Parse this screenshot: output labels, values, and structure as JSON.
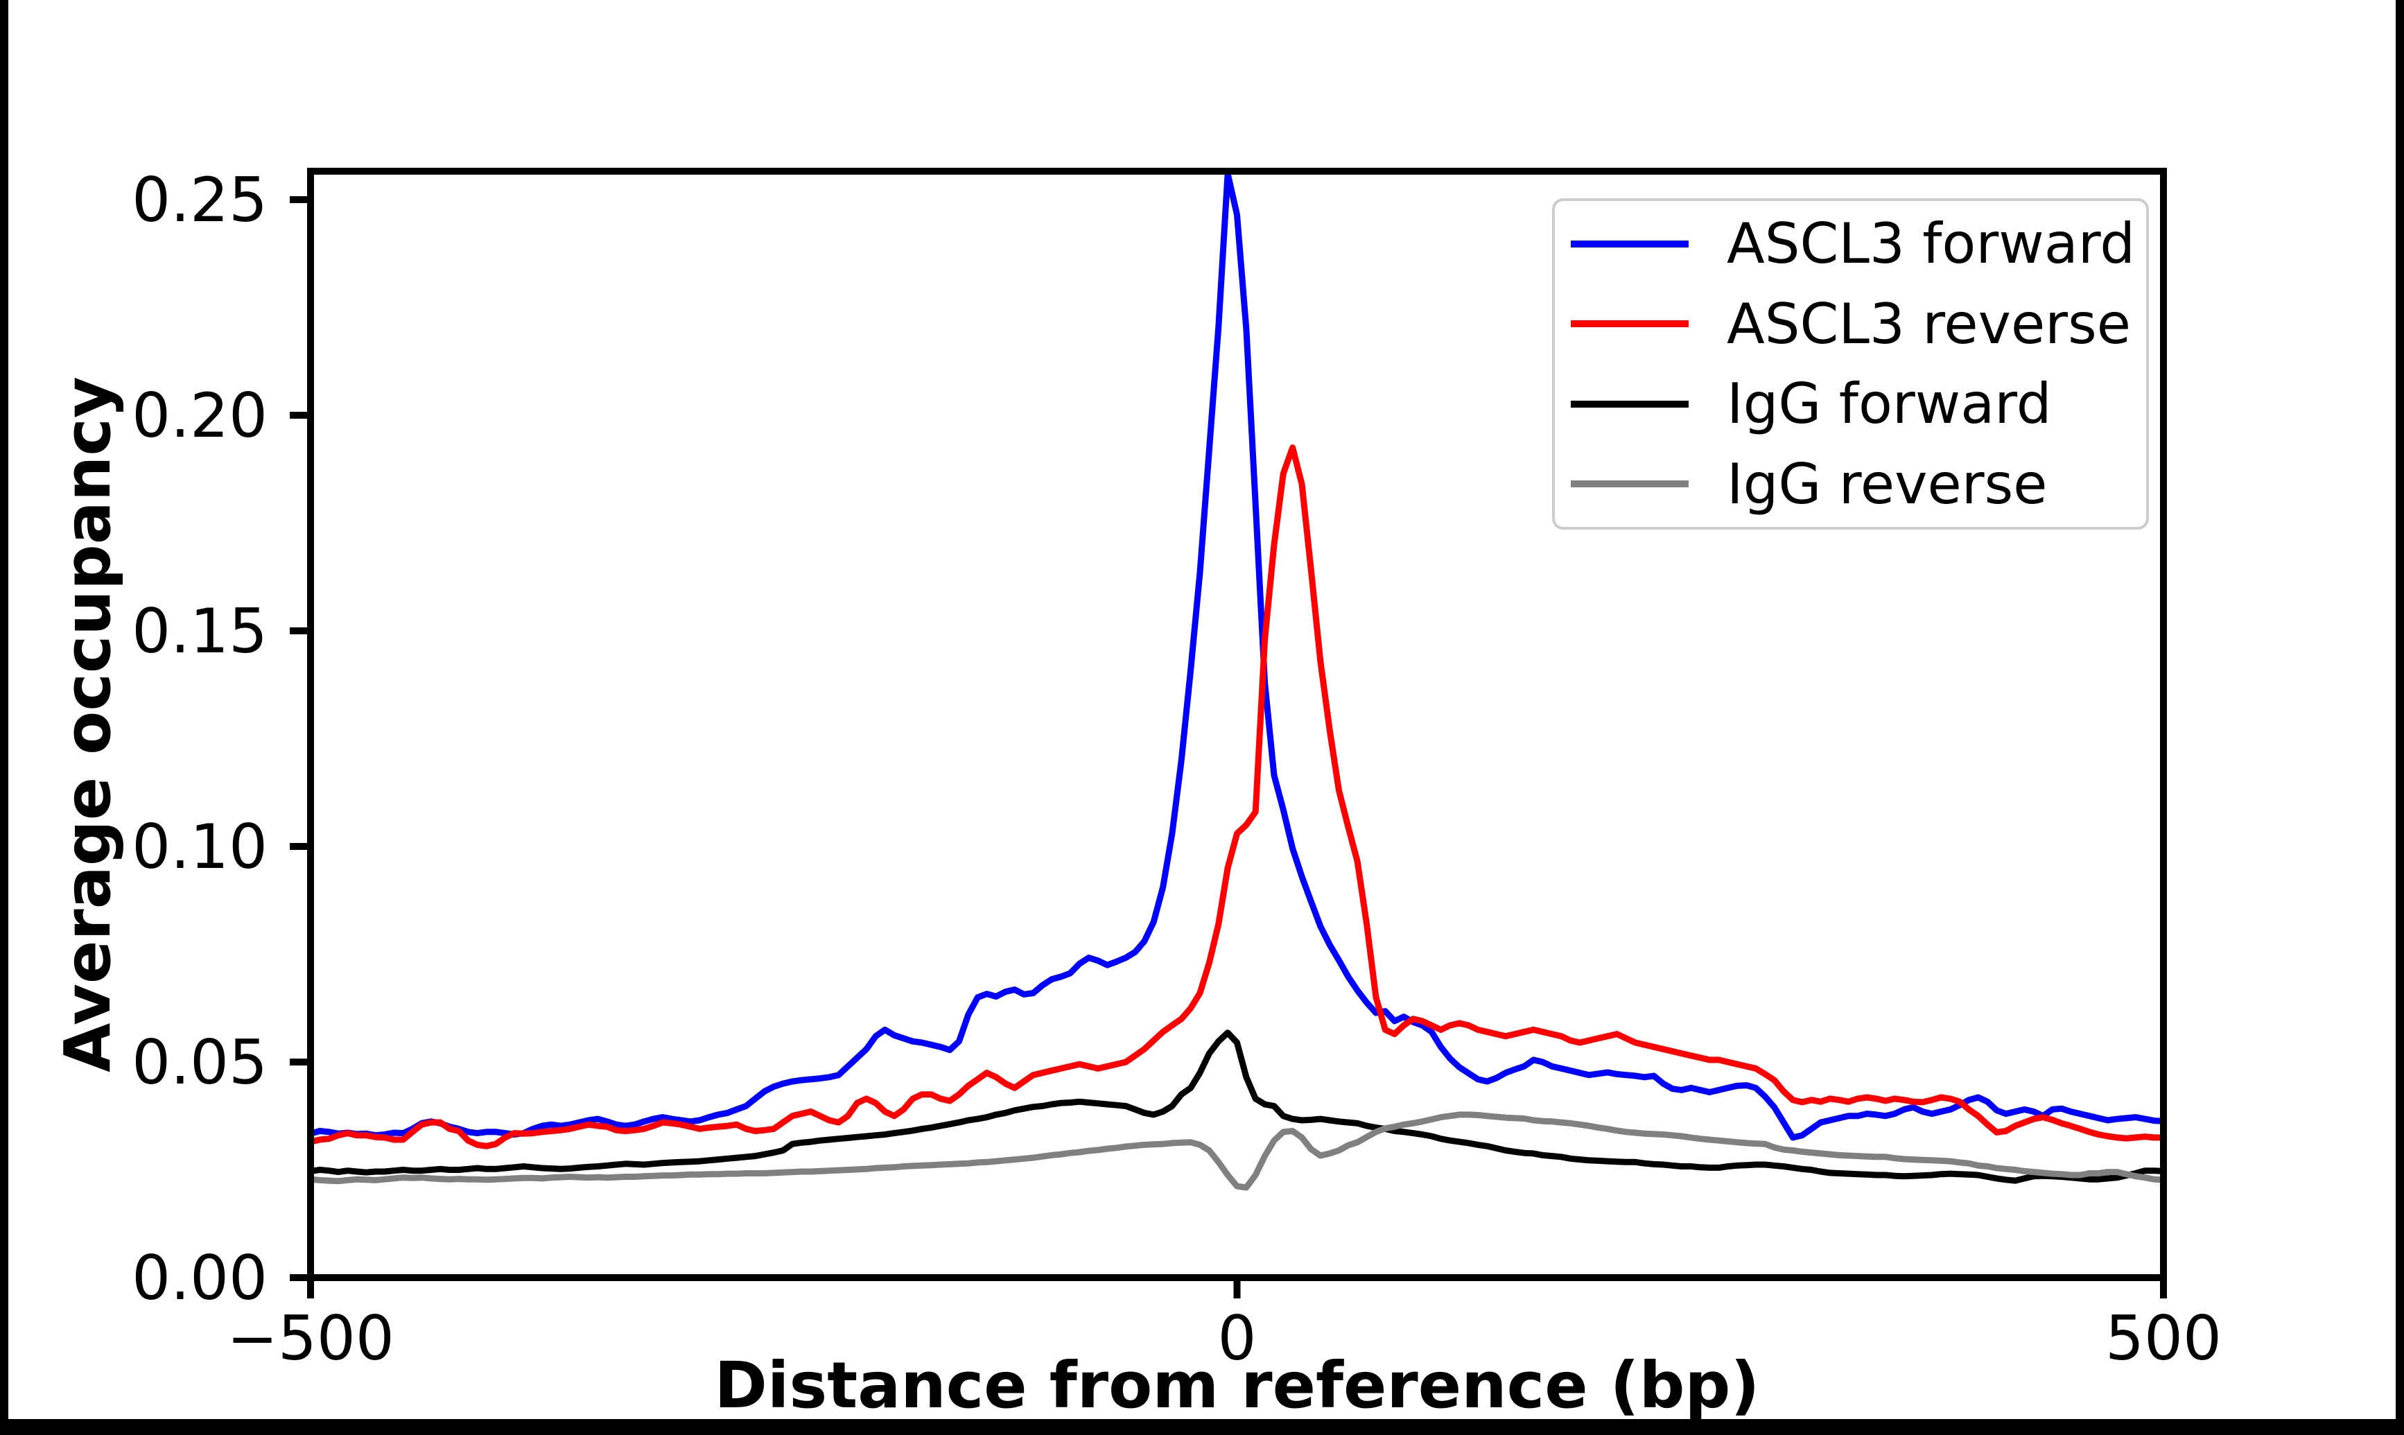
{
  "chart_data": {
    "type": "line",
    "title": "",
    "xlabel": "Distance from reference (bp)",
    "ylabel": "Average occupancy",
    "xlim": [
      -500,
      500
    ],
    "ylim": [
      0,
      0.2566
    ],
    "xticks": [
      -500,
      0,
      500
    ],
    "xtick_labels": [
      "−500",
      "0",
      "500"
    ],
    "yticks": [
      0.0,
      0.05,
      0.1,
      0.15,
      0.2,
      0.25
    ],
    "ytick_labels": [
      "0.00",
      "0.05",
      "0.10",
      "0.15",
      "0.20",
      "0.25"
    ],
    "grid": false,
    "legend_position": "upper right",
    "x_start": -500,
    "x_step": 5,
    "series": [
      {
        "name": "ASCL3 forward",
        "color": "#0000ff",
        "values": [
          0.0334,
          0.034,
          0.0338,
          0.0334,
          0.0336,
          0.0333,
          0.0334,
          0.033,
          0.0332,
          0.0336,
          0.0335,
          0.0345,
          0.0358,
          0.0362,
          0.0358,
          0.035,
          0.0345,
          0.0338,
          0.0335,
          0.0338,
          0.0338,
          0.0335,
          0.0332,
          0.0335,
          0.0345,
          0.0352,
          0.0355,
          0.0352,
          0.0355,
          0.036,
          0.0365,
          0.0368,
          0.0362,
          0.0355,
          0.0352,
          0.0355,
          0.0362,
          0.0368,
          0.0372,
          0.0368,
          0.0365,
          0.0362,
          0.0365,
          0.0372,
          0.0378,
          0.0382,
          0.039,
          0.0398,
          0.0415,
          0.0432,
          0.0443,
          0.045,
          0.0455,
          0.0458,
          0.046,
          0.0462,
          0.0465,
          0.047,
          0.049,
          0.051,
          0.053,
          0.056,
          0.0575,
          0.0562,
          0.0555,
          0.0548,
          0.0545,
          0.054,
          0.0535,
          0.0528,
          0.0548,
          0.061,
          0.065,
          0.0658,
          0.0652,
          0.0663,
          0.0668,
          0.0657,
          0.066,
          0.0678,
          0.0692,
          0.0698,
          0.0706,
          0.0728,
          0.0742,
          0.0735,
          0.0725,
          0.0733,
          0.0742,
          0.0755,
          0.078,
          0.0825,
          0.0905,
          0.103,
          0.12,
          0.141,
          0.1635,
          0.192,
          0.2205,
          0.256,
          0.2465,
          0.22,
          0.1795,
          0.138,
          0.1165,
          0.1085,
          0.0995,
          0.093,
          0.0872,
          0.0815,
          0.0772,
          0.0736,
          0.0698,
          0.0666,
          0.0638,
          0.0614,
          0.0618,
          0.0595,
          0.0605,
          0.0593,
          0.0585,
          0.057,
          0.0535,
          0.0508,
          0.0488,
          0.0474,
          0.046,
          0.0455,
          0.0463,
          0.0475,
          0.0483,
          0.049,
          0.0505,
          0.05,
          0.049,
          0.0485,
          0.048,
          0.0475,
          0.047,
          0.0473,
          0.0476,
          0.0472,
          0.047,
          0.0468,
          0.0465,
          0.0468,
          0.045,
          0.0438,
          0.0435,
          0.044,
          0.0435,
          0.043,
          0.0435,
          0.044,
          0.0445,
          0.0446,
          0.044,
          0.042,
          0.0395,
          0.036,
          0.0325,
          0.033,
          0.0345,
          0.036,
          0.0365,
          0.037,
          0.0375,
          0.0375,
          0.038,
          0.0378,
          0.0375,
          0.038,
          0.039,
          0.0395,
          0.0385,
          0.038,
          0.0385,
          0.039,
          0.04,
          0.0412,
          0.0418,
          0.0408,
          0.0388,
          0.038,
          0.0385,
          0.039,
          0.0385,
          0.0375,
          0.039,
          0.0392,
          0.0385,
          0.038,
          0.0375,
          0.037,
          0.0365,
          0.0368,
          0.037,
          0.0372,
          0.0368,
          0.0364,
          0.0363
        ]
      },
      {
        "name": "ASCL3 reverse",
        "color": "#ff0000",
        "values": [
          0.0315,
          0.032,
          0.0322,
          0.033,
          0.0335,
          0.033,
          0.033,
          0.0326,
          0.0325,
          0.032,
          0.032,
          0.0338,
          0.0355,
          0.036,
          0.036,
          0.0345,
          0.034,
          0.0318,
          0.0308,
          0.0305,
          0.031,
          0.0325,
          0.0335,
          0.0334,
          0.0335,
          0.0338,
          0.034,
          0.0342,
          0.0345,
          0.035,
          0.0355,
          0.0352,
          0.035,
          0.0342,
          0.034,
          0.0342,
          0.0345,
          0.0352,
          0.036,
          0.0358,
          0.0355,
          0.035,
          0.0345,
          0.0348,
          0.035,
          0.0352,
          0.0355,
          0.0345,
          0.034,
          0.0342,
          0.0345,
          0.036,
          0.0375,
          0.038,
          0.0385,
          0.0375,
          0.0365,
          0.036,
          0.0375,
          0.0405,
          0.0415,
          0.0405,
          0.0385,
          0.0375,
          0.039,
          0.0415,
          0.0425,
          0.0425,
          0.0415,
          0.041,
          0.0425,
          0.0445,
          0.046,
          0.0475,
          0.0465,
          0.045,
          0.044,
          0.0455,
          0.047,
          0.0475,
          0.048,
          0.0485,
          0.049,
          0.0495,
          0.049,
          0.0485,
          0.049,
          0.0495,
          0.05,
          0.0515,
          0.053,
          0.055,
          0.057,
          0.0585,
          0.06,
          0.0625,
          0.066,
          0.073,
          0.082,
          0.095,
          0.103,
          0.105,
          0.108,
          0.148,
          0.17,
          0.1865,
          0.1925,
          0.184,
          0.164,
          0.143,
          0.127,
          0.113,
          0.1045,
          0.0965,
          0.082,
          0.065,
          0.0575,
          0.0565,
          0.0585,
          0.06,
          0.0595,
          0.0585,
          0.0575,
          0.0585,
          0.059,
          0.0585,
          0.0575,
          0.057,
          0.0565,
          0.056,
          0.0565,
          0.057,
          0.0575,
          0.057,
          0.0565,
          0.056,
          0.055,
          0.0545,
          0.055,
          0.0555,
          0.056,
          0.0565,
          0.0555,
          0.0545,
          0.054,
          0.0535,
          0.053,
          0.0525,
          0.052,
          0.0515,
          0.051,
          0.0505,
          0.0505,
          0.05,
          0.0495,
          0.049,
          0.0485,
          0.0472,
          0.0458,
          0.0432,
          0.0412,
          0.0407,
          0.0412,
          0.0408,
          0.0415,
          0.0412,
          0.0408,
          0.0415,
          0.0418,
          0.0415,
          0.041,
          0.0415,
          0.0412,
          0.0408,
          0.0407,
          0.0412,
          0.0418,
          0.0415,
          0.0408,
          0.039,
          0.0375,
          0.0355,
          0.0337,
          0.034,
          0.0352,
          0.036,
          0.0368,
          0.0372,
          0.0366,
          0.0358,
          0.0352,
          0.0345,
          0.0338,
          0.0332,
          0.0328,
          0.0325,
          0.0323,
          0.0325,
          0.0327,
          0.0325,
          0.0325
        ]
      },
      {
        "name": "IgG forward",
        "color": "#000000",
        "values": [
          0.0247,
          0.025,
          0.0248,
          0.0245,
          0.0248,
          0.0246,
          0.0244,
          0.0246,
          0.0246,
          0.0248,
          0.025,
          0.0248,
          0.0248,
          0.025,
          0.0252,
          0.025,
          0.025,
          0.0252,
          0.0254,
          0.0252,
          0.0252,
          0.0254,
          0.0256,
          0.0258,
          0.0256,
          0.0254,
          0.0253,
          0.0252,
          0.0253,
          0.0255,
          0.0257,
          0.0258,
          0.026,
          0.0262,
          0.0264,
          0.0263,
          0.0262,
          0.0264,
          0.0266,
          0.0267,
          0.0268,
          0.0269,
          0.027,
          0.0272,
          0.0274,
          0.0276,
          0.0278,
          0.028,
          0.0282,
          0.0286,
          0.029,
          0.0295,
          0.031,
          0.0313,
          0.0315,
          0.0318,
          0.032,
          0.0322,
          0.0324,
          0.0326,
          0.0328,
          0.033,
          0.0332,
          0.0335,
          0.0338,
          0.0341,
          0.0345,
          0.0348,
          0.0352,
          0.0356,
          0.036,
          0.0365,
          0.0368,
          0.0372,
          0.0378,
          0.0382,
          0.0388,
          0.0392,
          0.0396,
          0.0398,
          0.0402,
          0.0405,
          0.0406,
          0.0408,
          0.0406,
          0.0404,
          0.0402,
          0.04,
          0.0398,
          0.039,
          0.0382,
          0.0378,
          0.0385,
          0.0398,
          0.0425,
          0.044,
          0.0475,
          0.052,
          0.0548,
          0.0568,
          0.0545,
          0.0465,
          0.0415,
          0.0402,
          0.0398,
          0.0375,
          0.0368,
          0.0365,
          0.0366,
          0.0368,
          0.0365,
          0.0362,
          0.036,
          0.0358,
          0.0352,
          0.0348,
          0.0345,
          0.034,
          0.0338,
          0.0335,
          0.0332,
          0.0328,
          0.0322,
          0.0318,
          0.0315,
          0.0312,
          0.0308,
          0.0305,
          0.03,
          0.0295,
          0.0292,
          0.0289,
          0.0288,
          0.0284,
          0.0282,
          0.028,
          0.0276,
          0.0274,
          0.0272,
          0.0271,
          0.027,
          0.0269,
          0.0268,
          0.0268,
          0.0265,
          0.0263,
          0.0262,
          0.026,
          0.0258,
          0.0258,
          0.0256,
          0.0255,
          0.0255,
          0.0258,
          0.026,
          0.0261,
          0.0262,
          0.0262,
          0.026,
          0.0258,
          0.0255,
          0.0252,
          0.025,
          0.0246,
          0.0243,
          0.0242,
          0.0241,
          0.024,
          0.0239,
          0.0238,
          0.0238,
          0.0236,
          0.0235,
          0.0236,
          0.0237,
          0.0238,
          0.024,
          0.0241,
          0.024,
          0.0239,
          0.0238,
          0.0234,
          0.023,
          0.0227,
          0.0225,
          0.023,
          0.0235,
          0.0236,
          0.0235,
          0.0234,
          0.0232,
          0.023,
          0.0228,
          0.0228,
          0.023,
          0.0232,
          0.0237,
          0.0242,
          0.0248,
          0.0248,
          0.0247
        ]
      },
      {
        "name": "IgG reverse",
        "color": "#808080",
        "values": [
          0.0228,
          0.0226,
          0.0225,
          0.0224,
          0.0226,
          0.0228,
          0.0227,
          0.0226,
          0.0228,
          0.023,
          0.0232,
          0.0231,
          0.0232,
          0.023,
          0.0229,
          0.0228,
          0.0229,
          0.0228,
          0.0228,
          0.0227,
          0.0228,
          0.0229,
          0.023,
          0.0231,
          0.0231,
          0.023,
          0.0232,
          0.0233,
          0.0234,
          0.0233,
          0.0232,
          0.0233,
          0.0232,
          0.0233,
          0.0234,
          0.0234,
          0.0235,
          0.0236,
          0.0237,
          0.0237,
          0.0238,
          0.0239,
          0.0239,
          0.024,
          0.024,
          0.0241,
          0.0241,
          0.0242,
          0.0242,
          0.0242,
          0.0243,
          0.0244,
          0.0245,
          0.0246,
          0.0246,
          0.0247,
          0.0248,
          0.0249,
          0.025,
          0.0251,
          0.0252,
          0.0254,
          0.0255,
          0.0256,
          0.0258,
          0.0259,
          0.026,
          0.0261,
          0.0262,
          0.0263,
          0.0264,
          0.0265,
          0.0267,
          0.0268,
          0.027,
          0.0272,
          0.0274,
          0.0276,
          0.0278,
          0.0281,
          0.0284,
          0.0286,
          0.0289,
          0.0291,
          0.0294,
          0.0296,
          0.0299,
          0.0301,
          0.0304,
          0.0306,
          0.0308,
          0.0309,
          0.031,
          0.0312,
          0.0313,
          0.0314,
          0.0308,
          0.0295,
          0.0268,
          0.0238,
          0.0212,
          0.0209,
          0.0238,
          0.0282,
          0.0318,
          0.0338,
          0.034,
          0.0325,
          0.0298,
          0.0283,
          0.0288,
          0.0295,
          0.0307,
          0.0314,
          0.0326,
          0.0338,
          0.0346,
          0.035,
          0.0355,
          0.0358,
          0.0362,
          0.0367,
          0.0372,
          0.0375,
          0.0378,
          0.0378,
          0.0377,
          0.0375,
          0.0373,
          0.0371,
          0.037,
          0.0369,
          0.0365,
          0.0363,
          0.0362,
          0.036,
          0.0358,
          0.0355,
          0.0352,
          0.0348,
          0.0345,
          0.0341,
          0.0338,
          0.0336,
          0.0334,
          0.0333,
          0.0332,
          0.033,
          0.0328,
          0.0325,
          0.0322,
          0.032,
          0.0318,
          0.0316,
          0.0314,
          0.0312,
          0.0311,
          0.031,
          0.0302,
          0.0297,
          0.0295,
          0.0292,
          0.029,
          0.0288,
          0.0286,
          0.0284,
          0.0283,
          0.0282,
          0.0281,
          0.028,
          0.028,
          0.0277,
          0.0275,
          0.0274,
          0.0273,
          0.0272,
          0.0271,
          0.027,
          0.0267,
          0.0265,
          0.026,
          0.0258,
          0.0254,
          0.0252,
          0.025,
          0.0247,
          0.0245,
          0.0243,
          0.0241,
          0.024,
          0.0238,
          0.0238,
          0.0242,
          0.0242,
          0.0245,
          0.0245,
          0.024,
          0.0235,
          0.0232,
          0.0228,
          0.0227
        ]
      }
    ]
  }
}
